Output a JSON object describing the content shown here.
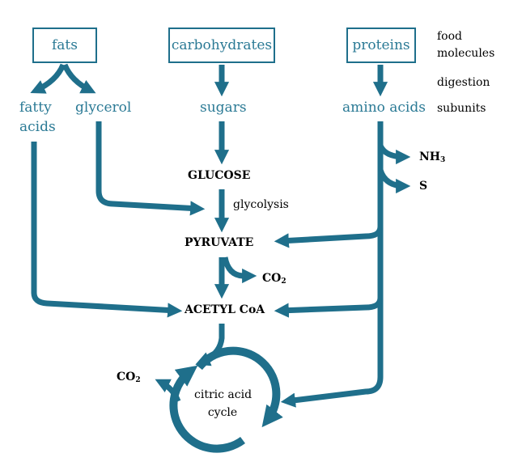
{
  "boxes": {
    "fats": "fats",
    "carbohydrates": "carbohydrates",
    "proteins": "proteins"
  },
  "subunits": {
    "fatty_acids_line1": "fatty",
    "fatty_acids_line2": "acids",
    "glycerol": "glycerol",
    "sugars": "sugars",
    "amino_acids": "amino acids"
  },
  "side_labels": {
    "food_line1": "food",
    "food_line2": "molecules",
    "digestion": "digestion",
    "subunits": "subunits"
  },
  "metabolites": {
    "glucose": "GLUCOSE",
    "glycolysis": "glycolysis",
    "pyruvate": "PYRUVATE",
    "acetyl_coa": "ACETYL CoA",
    "co2_base": "CO",
    "co2_sub": "2",
    "nh3_base": "NH",
    "nh3_sub": "3",
    "s": "S",
    "citric_line1": "citric acid",
    "citric_line2": "cycle"
  },
  "colors": {
    "arrow": "#1f6f8b",
    "label": "#2b7a95"
  }
}
